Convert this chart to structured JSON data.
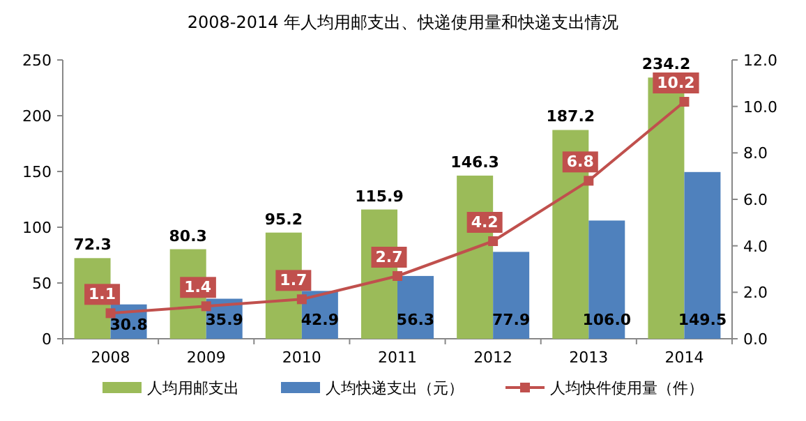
{
  "chart_data": {
    "type": "bar",
    "title": "2008-2014 年人均用邮支出、快递使用量和快递支出情况",
    "categories": [
      "2008",
      "2009",
      "2010",
      "2011",
      "2012",
      "2013",
      "2014"
    ],
    "series": [
      {
        "name": "人均用邮支出",
        "color": "#9bbb59",
        "values": [
          72.3,
          80.3,
          95.2,
          115.9,
          146.3,
          187.2,
          234.2
        ],
        "value_labels": [
          "72.3",
          "80.3",
          "95.2",
          "115.9",
          "146.3",
          "187.2",
          "234.2"
        ]
      },
      {
        "name": "人均快递支出（元）",
        "color": "#4f81bd",
        "values": [
          30.8,
          35.9,
          42.9,
          56.3,
          77.9,
          106.0,
          149.5
        ],
        "value_labels": [
          "30.8",
          "35.9",
          "42.9",
          "56.3",
          "77.9",
          "106.0",
          "149.5"
        ]
      },
      {
        "name": "人均快件使用量（件）",
        "type": "line",
        "axis": "y2",
        "marker": "square",
        "color": "#c0504d",
        "values": [
          1.1,
          1.4,
          1.7,
          2.7,
          4.2,
          6.8,
          10.2
        ],
        "value_labels": [
          "1.1",
          "1.4",
          "1.7",
          "2.7",
          "4.2",
          "6.8",
          "10.2"
        ]
      }
    ],
    "ylim": [
      0,
      250
    ],
    "yticks": [
      0,
      50,
      100,
      150,
      200,
      250
    ],
    "y2lim": [
      0,
      12
    ],
    "y2ticks": [
      {
        "value": 0,
        "label": "0.0"
      },
      {
        "value": 2,
        "label": "2.0"
      },
      {
        "value": 4,
        "label": "4.0"
      },
      {
        "value": 6,
        "label": "6.0"
      },
      {
        "value": 8,
        "label": "8.0"
      },
      {
        "value": 10,
        "label": "10.0"
      },
      {
        "value": 12,
        "label": "12.0"
      }
    ],
    "legend": "bottom",
    "grid": false
  }
}
